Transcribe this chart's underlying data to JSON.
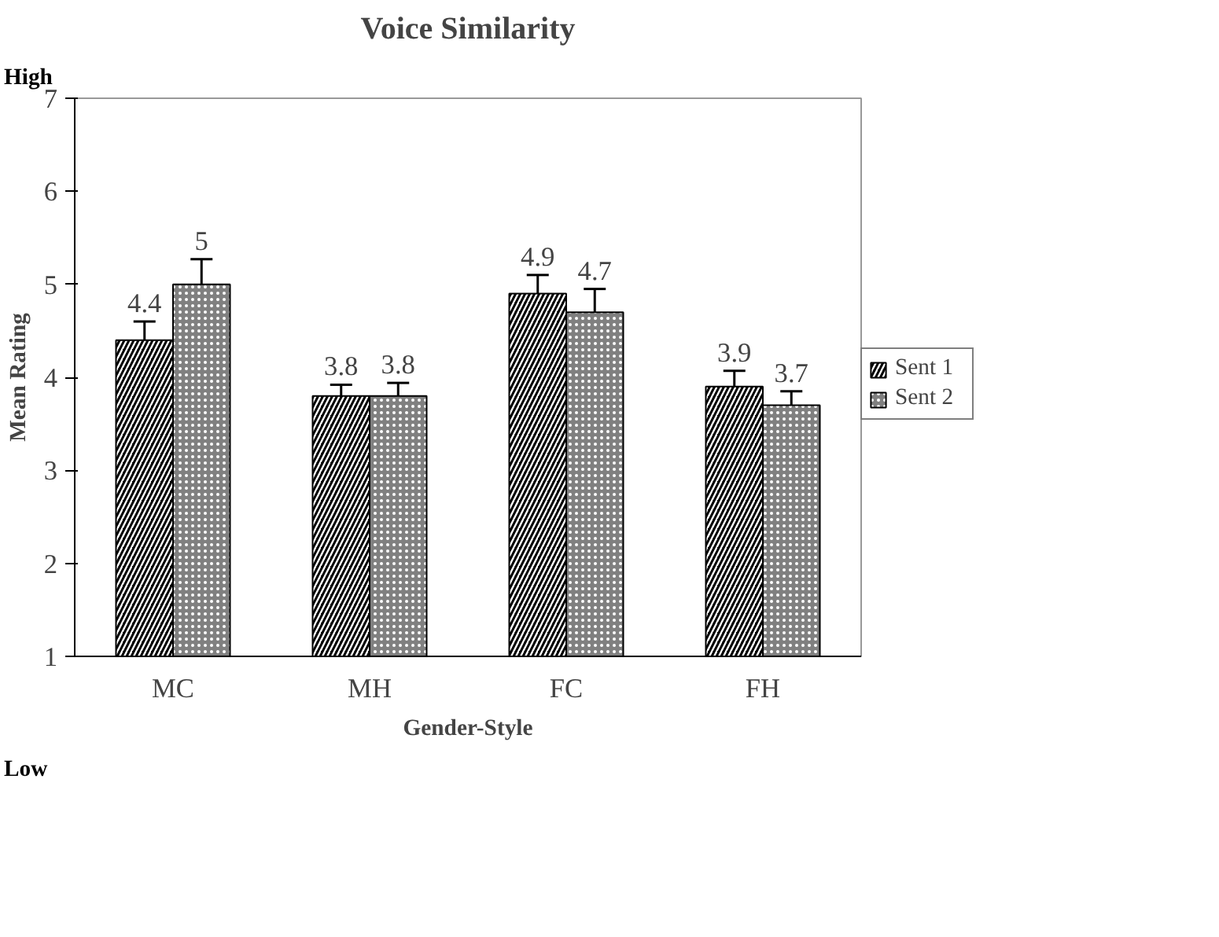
{
  "chart_data": {
    "type": "bar",
    "title": "Voice Similarity",
    "xlabel": "Gender-Style",
    "ylabel": "Mean Rating",
    "categories": [
      "MC",
      "MH",
      "FC",
      "FH"
    ],
    "series": [
      {
        "name": "Sent 1",
        "color": "#000000",
        "values": [
          4.4,
          3.8,
          4.9,
          3.9
        ],
        "errors": [
          0.2,
          0.12,
          0.2,
          0.17
        ]
      },
      {
        "name": "Sent 2",
        "color": "#808080",
        "values": [
          5,
          3.8,
          4.7,
          3.7
        ],
        "errors": [
          0.27,
          0.14,
          0.25,
          0.15
        ]
      }
    ],
    "ylim": [
      1,
      7
    ],
    "yticks": [
      1,
      2,
      3,
      4,
      5,
      6,
      7
    ],
    "grid": false,
    "legend": "right",
    "data_labels": true,
    "annotations": [
      "High",
      "Low"
    ]
  }
}
